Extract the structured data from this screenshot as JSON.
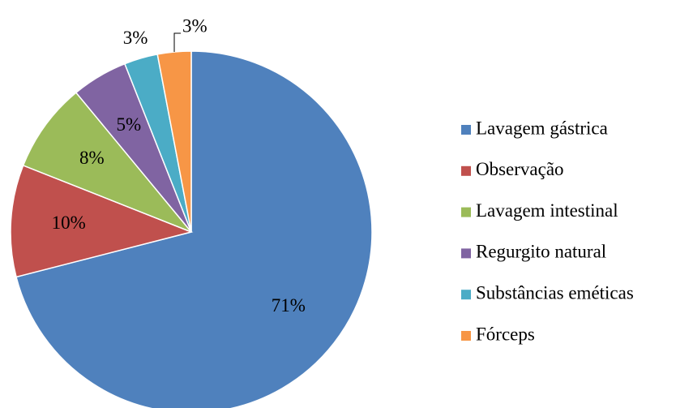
{
  "chart_data": {
    "type": "pie",
    "categories": [
      "Lavagem gástrica",
      "Observação",
      "Lavagem intestinal",
      "Regurgito natural",
      "Substâncias eméticas",
      "Fórceps"
    ],
    "values": [
      71,
      10,
      8,
      5,
      3,
      3
    ],
    "value_labels": [
      "71%",
      "10%",
      "8%",
      "5%",
      "3%",
      "3%"
    ],
    "colors": [
      "#4F81BD",
      "#C0504D",
      "#9BBB59",
      "#8064A2",
      "#4BACC6",
      "#F79646"
    ],
    "legend": "right"
  }
}
